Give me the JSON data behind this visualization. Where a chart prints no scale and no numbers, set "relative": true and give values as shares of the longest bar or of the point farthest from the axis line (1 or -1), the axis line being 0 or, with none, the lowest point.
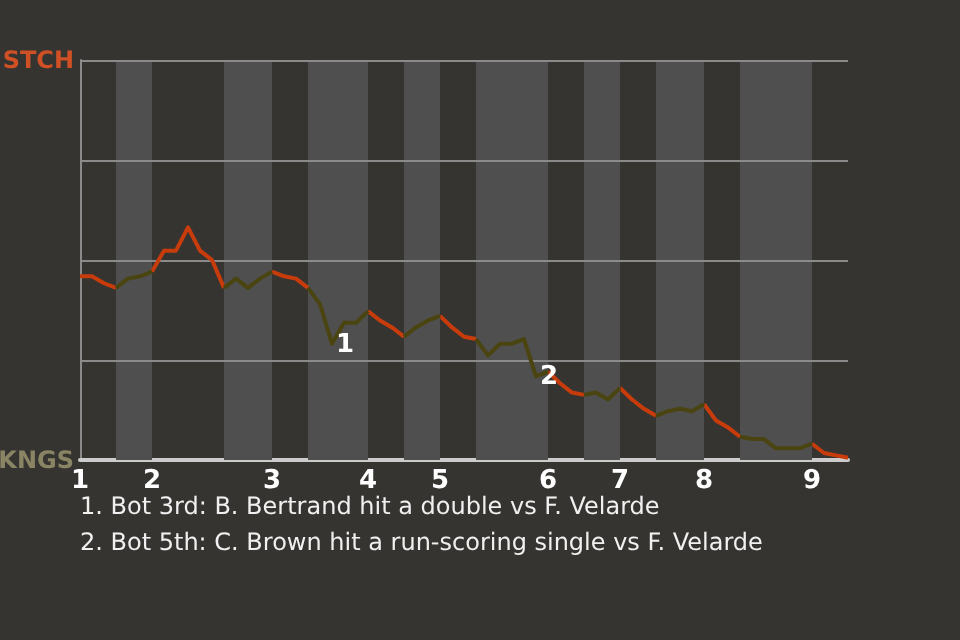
{
  "chart_data": {
    "type": "line",
    "categories": [
      "1",
      null,
      null,
      null,
      null,
      null,
      "2",
      null,
      null,
      null,
      null,
      null,
      null,
      null,
      null,
      null,
      "3",
      null,
      null,
      null,
      null,
      null,
      null,
      null,
      "4",
      null,
      null,
      null,
      null,
      null,
      "5",
      null,
      null,
      null,
      null,
      null,
      null,
      null,
      null,
      "6",
      null,
      null,
      null,
      null,
      null,
      "7",
      null,
      null,
      null,
      null,
      null,
      null,
      "8",
      null,
      null,
      null,
      null,
      null,
      null,
      null,
      null,
      "9",
      null,
      null,
      null
    ],
    "relative": true,
    "series": [
      {
        "color": "#c83c0c",
        "values": [
          0.79,
          0.79,
          0.76,
          0.74,
          null,
          null,
          0.81,
          0.9,
          0.9,
          1,
          0.9,
          0.86,
          0.74,
          null,
          null,
          null,
          0.81,
          0.79,
          0.78,
          0.74,
          null,
          null,
          null,
          null,
          0.64,
          0.6,
          0.57,
          0.53,
          null,
          null,
          0.62,
          0.57,
          0.53,
          0.52,
          null,
          null,
          null,
          null,
          null,
          0.38,
          0.33,
          0.29,
          0.28,
          null,
          null,
          0.31,
          0.26,
          0.22,
          0.19,
          null,
          null,
          null,
          0.24,
          0.17,
          0.14,
          0.1,
          null,
          null,
          null,
          null,
          null,
          0.07,
          0.03,
          0.02,
          0.01
        ]
      },
      {
        "color": "#4a4410",
        "values": [
          null,
          null,
          null,
          0.74,
          0.78,
          0.79,
          0.81,
          null,
          null,
          null,
          null,
          null,
          0.74,
          0.78,
          0.74,
          0.78,
          0.81,
          null,
          null,
          0.74,
          0.67,
          0.5,
          0.59,
          0.59,
          0.64,
          null,
          null,
          0.53,
          0.57,
          0.6,
          0.62,
          null,
          null,
          0.52,
          0.45,
          0.5,
          0.5,
          0.52,
          0.36,
          0.38,
          null,
          null,
          0.28,
          0.29,
          0.26,
          0.31,
          null,
          null,
          0.19,
          0.21,
          0.22,
          0.21,
          0.24,
          null,
          null,
          0.1,
          0.09,
          0.09,
          0.05,
          0.05,
          0.05,
          0.07,
          null,
          null,
          null
        ]
      }
    ],
    "marker": "none",
    "ref_lines": [
      {
        "axis": "y",
        "value": 0.43,
        "color": "#8a8a8a"
      },
      {
        "axis": "y",
        "value": 0.86,
        "color": "#8a8a8a"
      },
      {
        "axis": "y",
        "value": 1.29,
        "color": "#8a8a8a"
      },
      {
        "axis": "y",
        "value": 1.72,
        "color": "#8a8a8a"
      }
    ],
    "annotations": [
      "STCH",
      "KNGS",
      {
        "text": "1",
        "y": 0.5
      },
      {
        "text": "2",
        "y": 0.36
      },
      "1. Bot 3rd: B. Bertrand hit a double vs F. Velarde",
      "2. Bot 5th: C. Brown hit a run-scoring single vs F. Velarde"
    ]
  }
}
